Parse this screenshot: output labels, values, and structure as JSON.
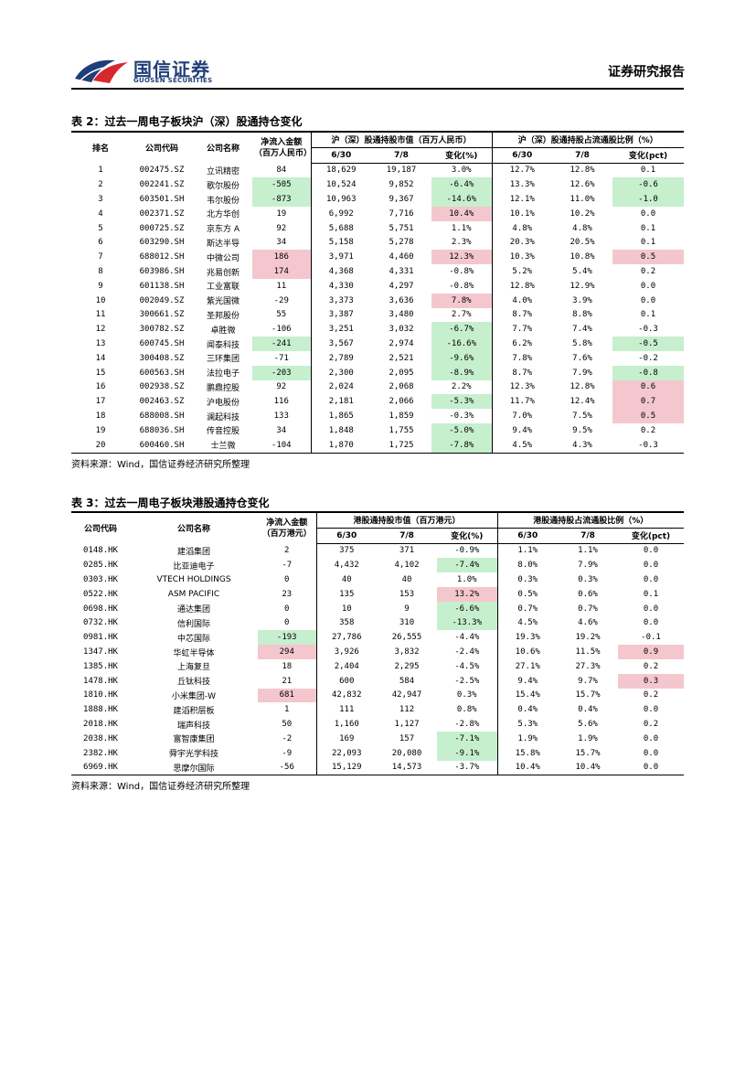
{
  "header": {
    "logo_cn": "国信证券",
    "logo_en": "GUOSEN SECURITIES",
    "report_type": "证券研究报告"
  },
  "colors": {
    "positive_bg": "#f4c7ce",
    "negative_bg": "#c6efce",
    "logo_blue": "#1f3f7a",
    "logo_red": "#d7282f"
  },
  "table2": {
    "title": "表 2：过去一周电子板块沪（深）股通持仓变化",
    "headers": {
      "rank": "排名",
      "code": "公司代码",
      "name": "公司名称",
      "net_inflow": "净流入金额",
      "net_inflow_unit": "（百万人民币）",
      "mv_group": "沪（深）股通持股市值（百万人民币）",
      "ratio_group": "沪（深）股通持股占流通股比例（%）",
      "d1": "6/30",
      "d2": "7/8",
      "chg": "变化(%)",
      "chg_pct": "变化(pct)"
    },
    "rows": [
      {
        "rank": "1",
        "code": "002475.SZ",
        "name": "立讯精密",
        "flow": "84",
        "mv1": "18,629",
        "mv2": "19,187",
        "mvchg": "3.0%",
        "r1": "12.7%",
        "r2": "12.8%",
        "rchg": "0.1",
        "flow_hl": "",
        "mv_hl": "",
        "r_hl": ""
      },
      {
        "rank": "2",
        "code": "002241.SZ",
        "name": "歌尔股份",
        "flow": "-505",
        "mv1": "10,524",
        "mv2": "9,852",
        "mvchg": "-6.4%",
        "r1": "13.3%",
        "r2": "12.6%",
        "rchg": "-0.6",
        "flow_hl": "g",
        "mv_hl": "g",
        "r_hl": "g"
      },
      {
        "rank": "3",
        "code": "603501.SH",
        "name": "韦尔股份",
        "flow": "-873",
        "mv1": "10,963",
        "mv2": "9,367",
        "mvchg": "-14.6%",
        "r1": "12.1%",
        "r2": "11.0%",
        "rchg": "-1.0",
        "flow_hl": "g",
        "mv_hl": "g",
        "r_hl": "g"
      },
      {
        "rank": "4",
        "code": "002371.SZ",
        "name": "北方华创",
        "flow": "19",
        "mv1": "6,992",
        "mv2": "7,716",
        "mvchg": "10.4%",
        "r1": "10.1%",
        "r2": "10.2%",
        "rchg": "0.0",
        "flow_hl": "",
        "mv_hl": "r",
        "r_hl": ""
      },
      {
        "rank": "5",
        "code": "000725.SZ",
        "name": "京东方 A",
        "flow": "92",
        "mv1": "5,688",
        "mv2": "5,751",
        "mvchg": "1.1%",
        "r1": "4.8%",
        "r2": "4.8%",
        "rchg": "0.1",
        "flow_hl": "",
        "mv_hl": "",
        "r_hl": ""
      },
      {
        "rank": "6",
        "code": "603290.SH",
        "name": "斯达半导",
        "flow": "34",
        "mv1": "5,158",
        "mv2": "5,278",
        "mvchg": "2.3%",
        "r1": "20.3%",
        "r2": "20.5%",
        "rchg": "0.1",
        "flow_hl": "",
        "mv_hl": "",
        "r_hl": ""
      },
      {
        "rank": "7",
        "code": "688012.SH",
        "name": "中微公司",
        "flow": "186",
        "mv1": "3,971",
        "mv2": "4,460",
        "mvchg": "12.3%",
        "r1": "10.3%",
        "r2": "10.8%",
        "rchg": "0.5",
        "flow_hl": "r",
        "mv_hl": "r",
        "r_hl": "r"
      },
      {
        "rank": "8",
        "code": "603986.SH",
        "name": "兆易创新",
        "flow": "174",
        "mv1": "4,368",
        "mv2": "4,331",
        "mvchg": "-0.8%",
        "r1": "5.2%",
        "r2": "5.4%",
        "rchg": "0.2",
        "flow_hl": "r",
        "mv_hl": "",
        "r_hl": ""
      },
      {
        "rank": "9",
        "code": "601138.SH",
        "name": "工业富联",
        "flow": "11",
        "mv1": "4,330",
        "mv2": "4,297",
        "mvchg": "-0.8%",
        "r1": "12.8%",
        "r2": "12.9%",
        "rchg": "0.0",
        "flow_hl": "",
        "mv_hl": "",
        "r_hl": ""
      },
      {
        "rank": "10",
        "code": "002049.SZ",
        "name": "紫光国微",
        "flow": "-29",
        "mv1": "3,373",
        "mv2": "3,636",
        "mvchg": "7.8%",
        "r1": "4.0%",
        "r2": "3.9%",
        "rchg": "0.0",
        "flow_hl": "",
        "mv_hl": "r",
        "r_hl": ""
      },
      {
        "rank": "11",
        "code": "300661.SZ",
        "name": "圣邦股份",
        "flow": "55",
        "mv1": "3,387",
        "mv2": "3,480",
        "mvchg": "2.7%",
        "r1": "8.7%",
        "r2": "8.8%",
        "rchg": "0.1",
        "flow_hl": "",
        "mv_hl": "",
        "r_hl": ""
      },
      {
        "rank": "12",
        "code": "300782.SZ",
        "name": "卓胜微",
        "flow": "-106",
        "mv1": "3,251",
        "mv2": "3,032",
        "mvchg": "-6.7%",
        "r1": "7.7%",
        "r2": "7.4%",
        "rchg": "-0.3",
        "flow_hl": "",
        "mv_hl": "g",
        "r_hl": ""
      },
      {
        "rank": "13",
        "code": "600745.SH",
        "name": "闻泰科技",
        "flow": "-241",
        "mv1": "3,567",
        "mv2": "2,974",
        "mvchg": "-16.6%",
        "r1": "6.2%",
        "r2": "5.8%",
        "rchg": "-0.5",
        "flow_hl": "g",
        "mv_hl": "g",
        "r_hl": "g"
      },
      {
        "rank": "14",
        "code": "300408.SZ",
        "name": "三环集团",
        "flow": "-71",
        "mv1": "2,789",
        "mv2": "2,521",
        "mvchg": "-9.6%",
        "r1": "7.8%",
        "r2": "7.6%",
        "rchg": "-0.2",
        "flow_hl": "",
        "mv_hl": "g",
        "r_hl": ""
      },
      {
        "rank": "15",
        "code": "600563.SH",
        "name": "法拉电子",
        "flow": "-203",
        "mv1": "2,300",
        "mv2": "2,095",
        "mvchg": "-8.9%",
        "r1": "8.7%",
        "r2": "7.9%",
        "rchg": "-0.8",
        "flow_hl": "g",
        "mv_hl": "g",
        "r_hl": "g"
      },
      {
        "rank": "16",
        "code": "002938.SZ",
        "name": "鹏鼎控股",
        "flow": "92",
        "mv1": "2,024",
        "mv2": "2,068",
        "mvchg": "2.2%",
        "r1": "12.3%",
        "r2": "12.8%",
        "rchg": "0.6",
        "flow_hl": "",
        "mv_hl": "",
        "r_hl": "r"
      },
      {
        "rank": "17",
        "code": "002463.SZ",
        "name": "沪电股份",
        "flow": "116",
        "mv1": "2,181",
        "mv2": "2,066",
        "mvchg": "-5.3%",
        "r1": "11.7%",
        "r2": "12.4%",
        "rchg": "0.7",
        "flow_hl": "",
        "mv_hl": "g",
        "r_hl": "r"
      },
      {
        "rank": "18",
        "code": "688008.SH",
        "name": "澜起科技",
        "flow": "133",
        "mv1": "1,865",
        "mv2": "1,859",
        "mvchg": "-0.3%",
        "r1": "7.0%",
        "r2": "7.5%",
        "rchg": "0.5",
        "flow_hl": "",
        "mv_hl": "",
        "r_hl": "r"
      },
      {
        "rank": "19",
        "code": "688036.SH",
        "name": "传音控股",
        "flow": "34",
        "mv1": "1,848",
        "mv2": "1,755",
        "mvchg": "-5.0%",
        "r1": "9.4%",
        "r2": "9.5%",
        "rchg": "0.2",
        "flow_hl": "",
        "mv_hl": "g",
        "r_hl": ""
      },
      {
        "rank": "20",
        "code": "600460.SH",
        "name": "士兰微",
        "flow": "-104",
        "mv1": "1,870",
        "mv2": "1,725",
        "mvchg": "-7.8%",
        "r1": "4.5%",
        "r2": "4.3%",
        "rchg": "-0.3",
        "flow_hl": "",
        "mv_hl": "g",
        "r_hl": ""
      }
    ],
    "source": "资料来源：Wind，国信证券经济研究所整理"
  },
  "table3": {
    "title": "表 3：过去一周电子板块港股通持仓变化",
    "headers": {
      "code": "公司代码",
      "name": "公司名称",
      "net_inflow": "净流入金额",
      "net_inflow_unit": "（百万港元）",
      "mv_group": "港股通持股市值（百万港元）",
      "ratio_group": "港股通持股占流通股比例（%）",
      "d1": "6/30",
      "d2": "7/8",
      "chg": "变化(%)",
      "chg_pct": "变化(pct)"
    },
    "rows": [
      {
        "code": "0148.HK",
        "name": "建滔集团",
        "flow": "2",
        "mv1": "375",
        "mv2": "371",
        "mvchg": "-0.9%",
        "r1": "1.1%",
        "r2": "1.1%",
        "rchg": "0.0",
        "flow_hl": "",
        "mv_hl": "",
        "r_hl": ""
      },
      {
        "code": "0285.HK",
        "name": "比亚迪电子",
        "flow": "-7",
        "mv1": "4,432",
        "mv2": "4,102",
        "mvchg": "-7.4%",
        "r1": "8.0%",
        "r2": "7.9%",
        "rchg": "0.0",
        "flow_hl": "",
        "mv_hl": "g",
        "r_hl": ""
      },
      {
        "code": "0303.HK",
        "name": "VTECH HOLDINGS",
        "flow": "0",
        "mv1": "40",
        "mv2": "40",
        "mvchg": "1.0%",
        "r1": "0.3%",
        "r2": "0.3%",
        "rchg": "0.0",
        "flow_hl": "",
        "mv_hl": "",
        "r_hl": ""
      },
      {
        "code": "0522.HK",
        "name": "ASM PACIFIC",
        "flow": "23",
        "mv1": "135",
        "mv2": "153",
        "mvchg": "13.2%",
        "r1": "0.5%",
        "r2": "0.6%",
        "rchg": "0.1",
        "flow_hl": "",
        "mv_hl": "r",
        "r_hl": ""
      },
      {
        "code": "0698.HK",
        "name": "通达集团",
        "flow": "0",
        "mv1": "10",
        "mv2": "9",
        "mvchg": "-6.6%",
        "r1": "0.7%",
        "r2": "0.7%",
        "rchg": "0.0",
        "flow_hl": "",
        "mv_hl": "g",
        "r_hl": ""
      },
      {
        "code": "0732.HK",
        "name": "信利国际",
        "flow": "0",
        "mv1": "358",
        "mv2": "310",
        "mvchg": "-13.3%",
        "r1": "4.5%",
        "r2": "4.6%",
        "rchg": "0.0",
        "flow_hl": "",
        "mv_hl": "g",
        "r_hl": ""
      },
      {
        "code": "0981.HK",
        "name": "中芯国际",
        "flow": "-193",
        "mv1": "27,786",
        "mv2": "26,555",
        "mvchg": "-4.4%",
        "r1": "19.3%",
        "r2": "19.2%",
        "rchg": "-0.1",
        "flow_hl": "g",
        "mv_hl": "",
        "r_hl": ""
      },
      {
        "code": "1347.HK",
        "name": "华虹半导体",
        "flow": "294",
        "mv1": "3,926",
        "mv2": "3,832",
        "mvchg": "-2.4%",
        "r1": "10.6%",
        "r2": "11.5%",
        "rchg": "0.9",
        "flow_hl": "r",
        "mv_hl": "",
        "r_hl": "r"
      },
      {
        "code": "1385.HK",
        "name": "上海复旦",
        "flow": "18",
        "mv1": "2,404",
        "mv2": "2,295",
        "mvchg": "-4.5%",
        "r1": "27.1%",
        "r2": "27.3%",
        "rchg": "0.2",
        "flow_hl": "",
        "mv_hl": "",
        "r_hl": ""
      },
      {
        "code": "1478.HK",
        "name": "丘钛科技",
        "flow": "21",
        "mv1": "600",
        "mv2": "584",
        "mvchg": "-2.5%",
        "r1": "9.4%",
        "r2": "9.7%",
        "rchg": "0.3",
        "flow_hl": "",
        "mv_hl": "",
        "r_hl": "r"
      },
      {
        "code": "1810.HK",
        "name": "小米集团-W",
        "flow": "681",
        "mv1": "42,832",
        "mv2": "42,947",
        "mvchg": "0.3%",
        "r1": "15.4%",
        "r2": "15.7%",
        "rchg": "0.2",
        "flow_hl": "r",
        "mv_hl": "",
        "r_hl": ""
      },
      {
        "code": "1888.HK",
        "name": "建滔积层板",
        "flow": "1",
        "mv1": "111",
        "mv2": "112",
        "mvchg": "0.8%",
        "r1": "0.4%",
        "r2": "0.4%",
        "rchg": "0.0",
        "flow_hl": "",
        "mv_hl": "",
        "r_hl": ""
      },
      {
        "code": "2018.HK",
        "name": "瑞声科技",
        "flow": "50",
        "mv1": "1,160",
        "mv2": "1,127",
        "mvchg": "-2.8%",
        "r1": "5.3%",
        "r2": "5.6%",
        "rchg": "0.2",
        "flow_hl": "",
        "mv_hl": "",
        "r_hl": ""
      },
      {
        "code": "2038.HK",
        "name": "富智康集团",
        "flow": "-2",
        "mv1": "169",
        "mv2": "157",
        "mvchg": "-7.1%",
        "r1": "1.9%",
        "r2": "1.9%",
        "rchg": "0.0",
        "flow_hl": "",
        "mv_hl": "g",
        "r_hl": ""
      },
      {
        "code": "2382.HK",
        "name": "舜宇光学科技",
        "flow": "-9",
        "mv1": "22,093",
        "mv2": "20,080",
        "mvchg": "-9.1%",
        "r1": "15.8%",
        "r2": "15.7%",
        "rchg": "0.0",
        "flow_hl": "",
        "mv_hl": "g",
        "r_hl": ""
      },
      {
        "code": "6969.HK",
        "name": "思摩尔国际",
        "flow": "-56",
        "mv1": "15,129",
        "mv2": "14,573",
        "mvchg": "-3.7%",
        "r1": "10.4%",
        "r2": "10.4%",
        "rchg": "0.0",
        "flow_hl": "",
        "mv_hl": "",
        "r_hl": ""
      }
    ],
    "source": "资料来源：Wind，国信证券经济研究所整理"
  }
}
